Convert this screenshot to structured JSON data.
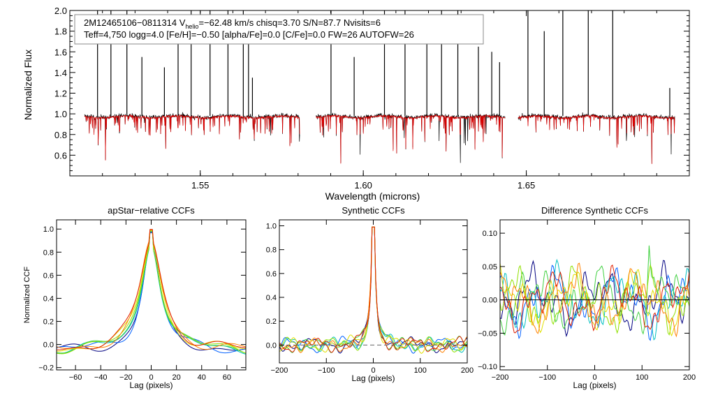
{
  "spectrum": {
    "type": "line",
    "header_line1_prefix": "2M12465106−0811314  V",
    "header_line1_sub": "helio",
    "header_line1_suffix": "=−62.48 km/s  chisq=3.70  S/N=87.7  Nvisits=6",
    "header_line2": "Teff=4,750 logg=4.0 [Fe/H]=−0.50 [alpha/Fe]=0.0 [C/Fe]=0.0 FW=26 AUTOFW=26",
    "xlabel": "Wavelength (microns)",
    "ylabel": "Normalized Flux",
    "xlim": [
      1.51,
      1.7
    ],
    "ylim": [
      0.4,
      2.0
    ],
    "xticks": [
      1.55,
      1.6,
      1.65
    ],
    "xtick_labels": [
      "1.55",
      "1.60",
      "1.65"
    ],
    "yticks": [
      0.6,
      0.8,
      1.0,
      1.2,
      1.4,
      1.6,
      1.8,
      2.0
    ],
    "ytick_labels": [
      "0.6",
      "0.8",
      "1.0",
      "1.2",
      "1.4",
      "1.6",
      "1.8",
      "2.0"
    ],
    "chips": [
      [
        1.5145,
        1.5805
      ],
      [
        1.5855,
        1.6435
      ],
      [
        1.6475,
        1.6955
      ]
    ],
    "series": [
      {
        "name": "observed",
        "color": "#000000"
      },
      {
        "name": "model",
        "color": "#dd0000"
      }
    ]
  },
  "panels": [
    {
      "title": "apStar−relative CCFs",
      "xlabel": "Lag (pixels)",
      "ylabel": "Normalized CCF",
      "xlim": [
        -75,
        75
      ],
      "ylim": [
        -0.22,
        1.08
      ],
      "xticks": [
        -60,
        -40,
        -20,
        0,
        20,
        40,
        60
      ],
      "xtick_labels": [
        "−60",
        "−40",
        "−20",
        "0",
        "20",
        "40",
        "60"
      ],
      "yticks": [
        -0.2,
        0.0,
        0.2,
        0.4,
        0.6,
        0.8,
        1.0
      ],
      "ytick_labels": [
        "−0.2",
        "0.0",
        "0.2",
        "0.4",
        "0.6",
        "0.8",
        "1.0"
      ]
    },
    {
      "title": "Synthetic CCFs",
      "xlabel": "Lag (pixels)",
      "ylabel": "",
      "xlim": [
        -200,
        200
      ],
      "ylim": [
        -0.15,
        1.05
      ],
      "xticks": [
        -200,
        -100,
        0,
        100,
        200
      ],
      "xtick_labels": [
        "−200",
        "−100",
        "0",
        "100",
        "200"
      ],
      "yticks": [
        0.0,
        0.2,
        0.4,
        0.6,
        0.8,
        1.0
      ],
      "ytick_labels": [
        "0.0",
        "0.2",
        "0.4",
        "0.6",
        "0.8",
        "1.0"
      ]
    },
    {
      "title": "Difference Synthetic CCFs",
      "xlabel": "Lag (pixels)",
      "ylabel": "",
      "xlim": [
        -200,
        200
      ],
      "ylim": [
        -0.105,
        0.12
      ],
      "xticks": [
        -200,
        -100,
        0,
        100,
        200
      ],
      "xtick_labels": [
        "−200",
        "−100",
        "0",
        "100",
        "200"
      ],
      "yticks": [
        -0.1,
        -0.05,
        0.0,
        0.05,
        0.1
      ],
      "ytick_labels": [
        "−0.10",
        "−0.05",
        "0.00",
        "0.05",
        "0.10"
      ]
    }
  ],
  "ccf_colors": [
    "#000080",
    "#0060ff",
    "#00c0c0",
    "#40d040",
    "#90e000",
    "#e0e000",
    "#ff8000",
    "#e02000"
  ]
}
